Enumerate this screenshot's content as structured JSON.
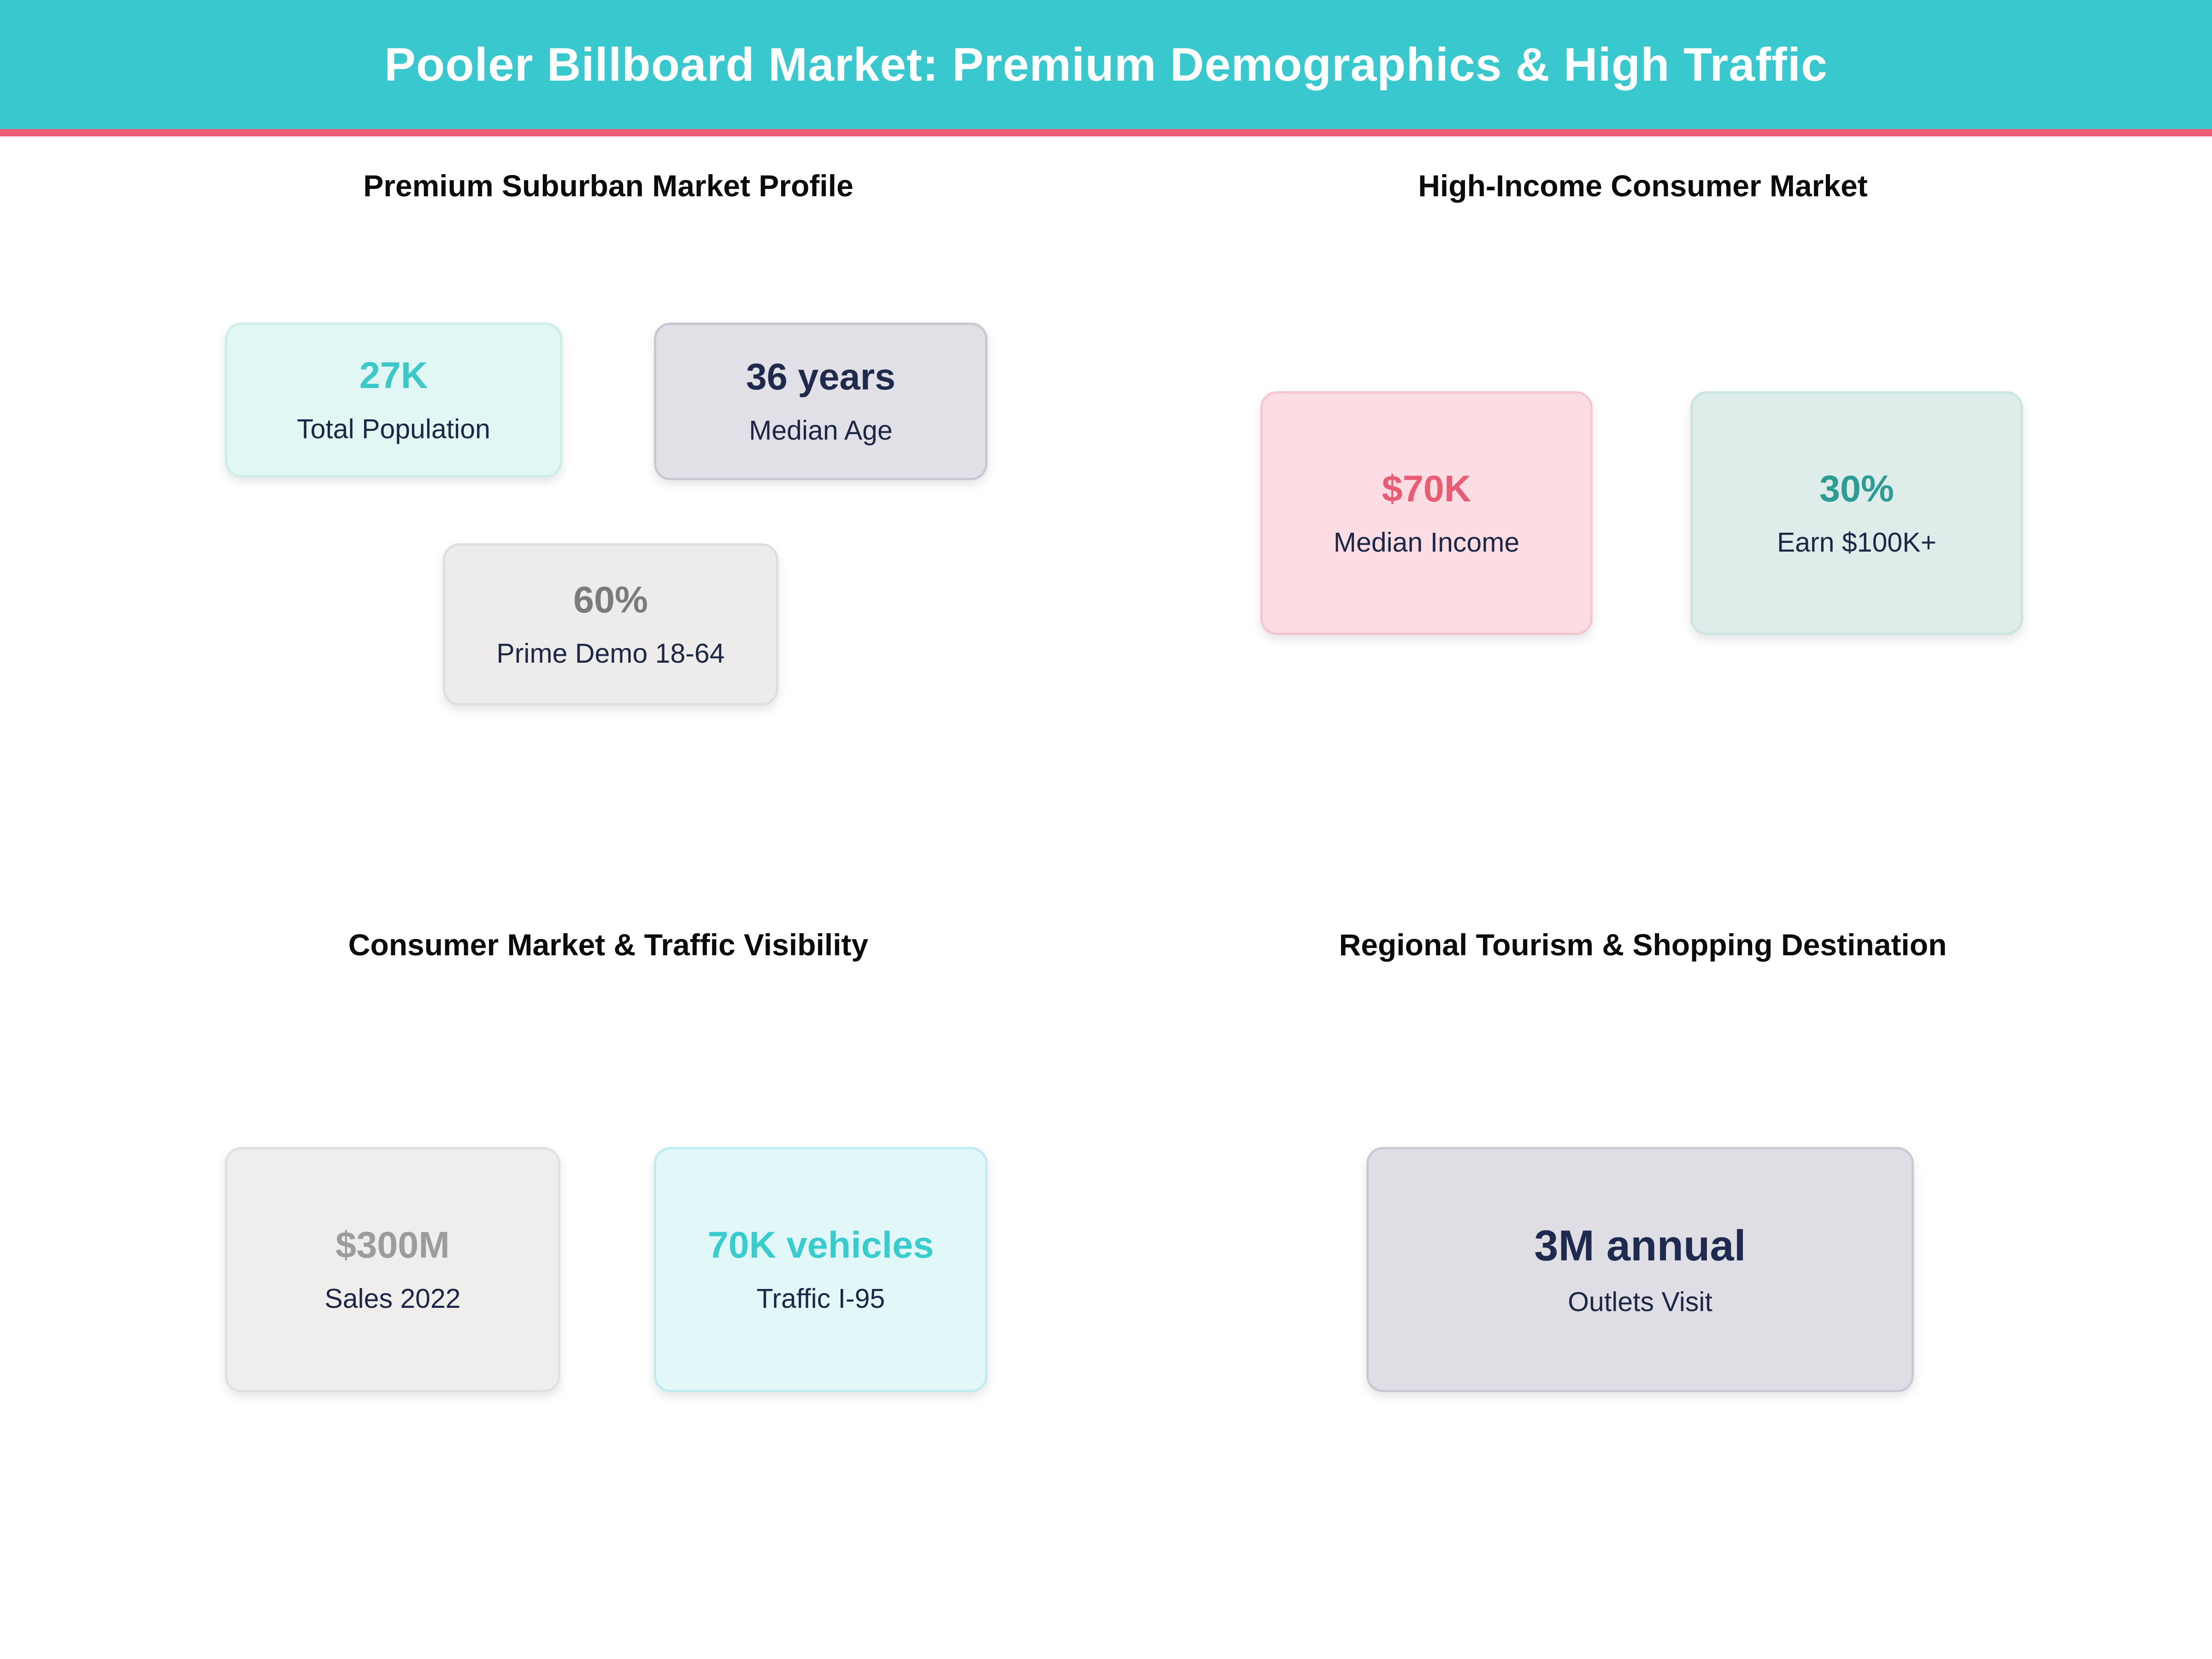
{
  "header": {
    "title": "Pooler Billboard Market: Premium Demographics & High Traffic",
    "bg_color": "#38c8ce",
    "accent_color": "#ef5e78",
    "title_color": "#ffffff"
  },
  "sections": {
    "q1": {
      "title": "Premium Suburban Market Profile"
    },
    "q2": {
      "title": "High-Income Consumer Market"
    },
    "q3": {
      "title": "Consumer Market & Traffic Visibility"
    },
    "q4": {
      "title": "Regional Tourism & Shopping Destination"
    }
  },
  "cards": {
    "total_population": {
      "value": "27K",
      "label": "Total Population",
      "value_color": "#3bc8c8",
      "label_color": "#1b2745",
      "bg": "#e1f7f4",
      "border": "#cdeeea"
    },
    "median_age": {
      "value": "36 years",
      "label": "Median Age",
      "value_color": "#1f2a4c",
      "label_color": "#1b2745",
      "bg": "#e0e0e6",
      "border": "#c8c8d2"
    },
    "prime_demo": {
      "value": "60%",
      "label": "Prime Demo 18-64",
      "value_color": "#7b7b7b",
      "label_color": "#1b2745",
      "bg": "#edeceb",
      "border": "#dededd"
    },
    "median_income": {
      "value": "$70K",
      "label": "Median Income",
      "value_color": "#e85c74",
      "label_color": "#1b2745",
      "bg": "#fbdde3",
      "border": "#f6c6cf"
    },
    "earn_100k": {
      "value": "30%",
      "label": "Earn $100K+",
      "value_color": "#2e9c95",
      "label_color": "#1b2745",
      "bg": "#dfedea",
      "border": "#cae4df"
    },
    "sales_2022": {
      "value": "$300M",
      "label": "Sales 2022",
      "value_color": "#9c9c9c",
      "label_color": "#1b2745",
      "bg": "#efeeed",
      "border": "#e2e1e0"
    },
    "traffic_i95": {
      "value": "70K vehicles",
      "label": "Traffic I-95",
      "value_color": "#38ccce",
      "label_color": "#1b2745",
      "bg": "#e2f8f8",
      "border": "#bfecee"
    },
    "outlets_visit": {
      "value": "3M annual",
      "label": "Outlets Visit",
      "value_color": "#1e2a4e",
      "label_color": "#1b2745",
      "bg": "#dedee4",
      "border": "#c9c9d3"
    }
  }
}
